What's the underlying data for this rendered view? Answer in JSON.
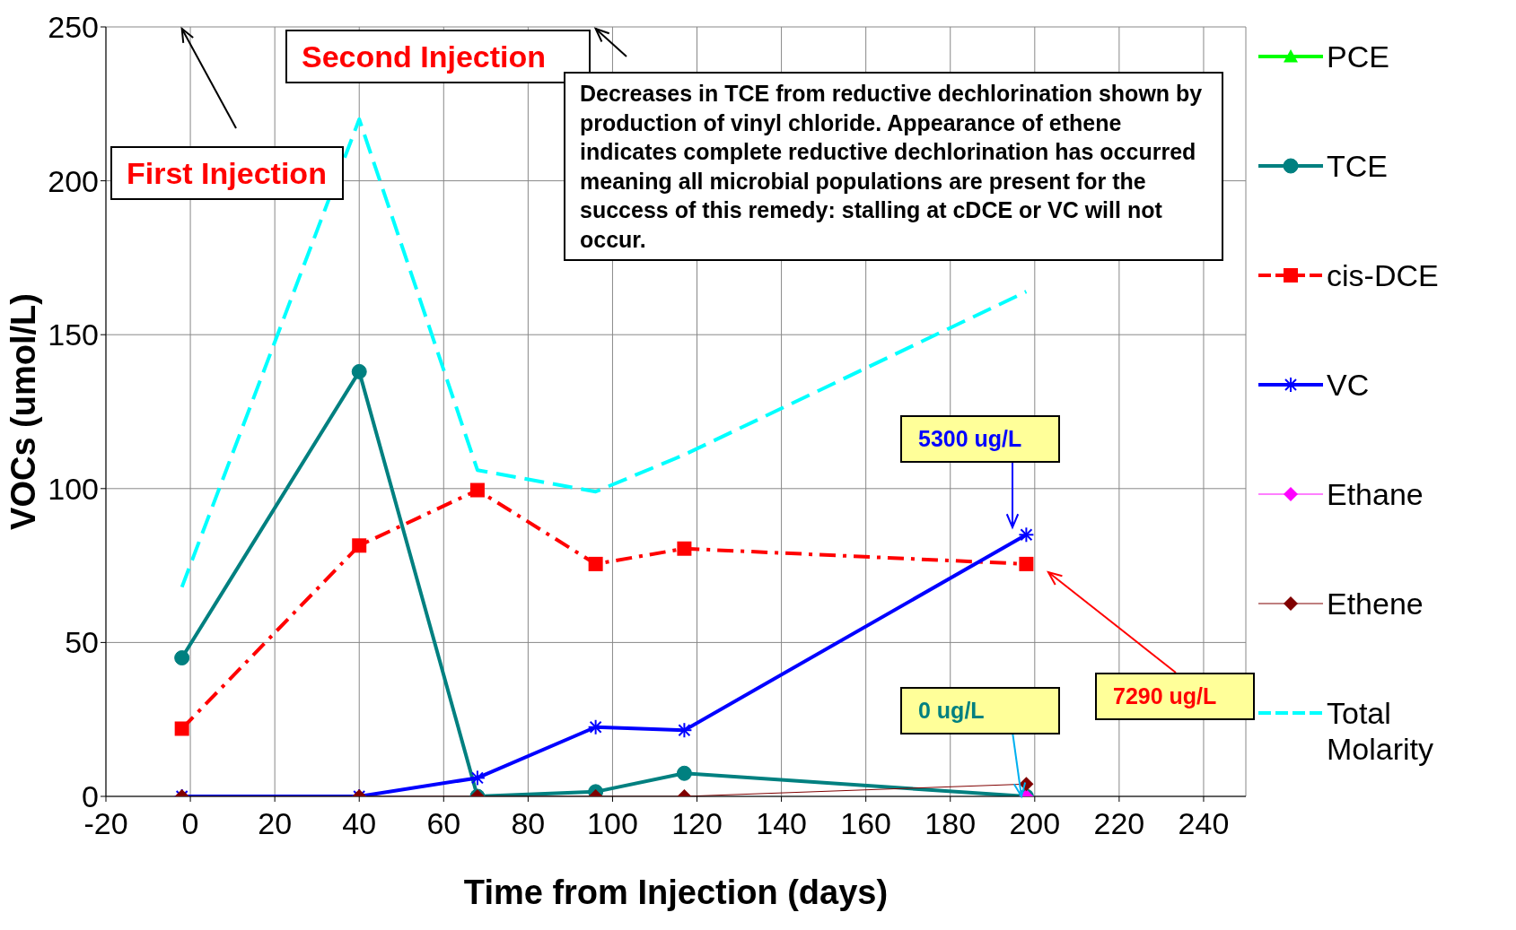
{
  "chart_data": {
    "type": "line",
    "xlabel": "Time from Injection (days)",
    "ylabel": "VOCs (umol/L)",
    "x": [
      -2,
      40,
      68,
      96,
      117,
      198
    ],
    "series": [
      {
        "name": "PCE",
        "color": "#00ff00",
        "marker": "triangle",
        "line_style": "solid",
        "values": [
          null,
          null,
          null,
          null,
          null,
          null
        ]
      },
      {
        "name": "TCE",
        "color": "#008080",
        "marker": "circle",
        "line_style": "solid",
        "values": [
          45,
          138,
          0,
          1.5,
          7.5,
          0
        ]
      },
      {
        "name": "cis-DCE",
        "color": "#ff0000",
        "marker": "square",
        "line_style": "dashed",
        "values": [
          22,
          81.5,
          99.5,
          75.5,
          80.5,
          75.5
        ]
      },
      {
        "name": "VC",
        "color": "#0000ff",
        "marker": "cross",
        "line_style": "solid",
        "values": [
          0,
          0,
          6,
          22.5,
          21.5,
          85
        ]
      },
      {
        "name": "Ethane",
        "color": "#ff00ff",
        "marker": "diamond",
        "line_style": "solid",
        "values": [
          null,
          null,
          null,
          null,
          null,
          0
        ]
      },
      {
        "name": "Ethene",
        "color": "#800000",
        "marker": "diamond",
        "line_style": "solid",
        "values": [
          0,
          0,
          0,
          0,
          0,
          4
        ]
      },
      {
        "name": "Total Molarity",
        "color": "#00ffff",
        "marker": "none",
        "line_style": "dashed",
        "values": [
          68,
          220,
          106,
          99,
          111,
          164
        ]
      }
    ],
    "xlim": [
      -20,
      250
    ],
    "xticks": [
      -20,
      0,
      20,
      40,
      60,
      80,
      100,
      120,
      140,
      160,
      180,
      200,
      220,
      240
    ],
    "ylim": [
      0,
      250
    ],
    "yticks": [
      0,
      50,
      100,
      150,
      200,
      250
    ],
    "grid": true,
    "legend": "right",
    "annotations": [
      "First Injection",
      "Second Injection",
      "Decreases in TCE from reductive dechlorination shown by production of vinyl chloride. Appearance of ethene indicates complete reductive dechlorination has occurred meaning all microbial populations are present for the success of this remedy: stalling at cDCE or VC will not occur.",
      "5300 ug/L",
      "0 ug/L",
      "7290 ug/L"
    ]
  }
}
